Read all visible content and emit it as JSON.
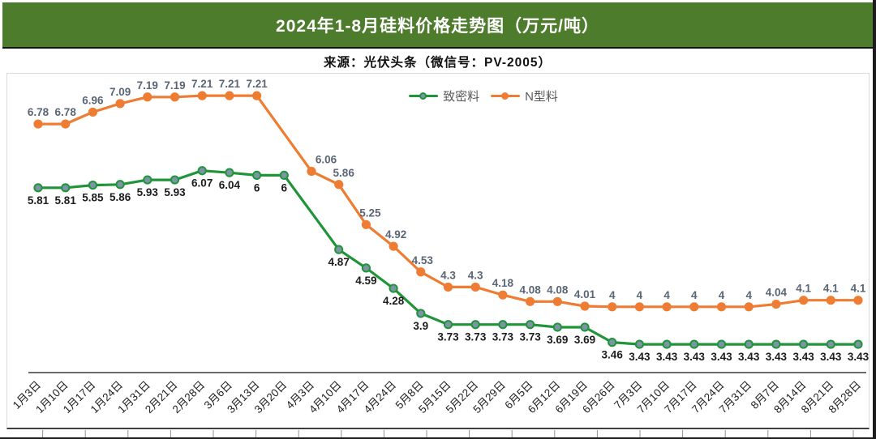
{
  "header": {
    "title": "2024年1-8月硅料价格走势图（万元/吨）",
    "bg_color": "#4d7c2d",
    "text_color": "#ffffff"
  },
  "source": {
    "text": "来源：光伏头条（微信号：PV-2005）"
  },
  "chart_data": {
    "type": "line",
    "title": "2024年1-8月硅料价格走势图（万元/吨）",
    "xlabel": "",
    "ylabel": "万元/吨",
    "ylim": [
      3.0,
      7.56
    ],
    "grid": false,
    "y_axis_visible": false,
    "legend_position": "top-center",
    "categories": [
      "1月3日",
      "1月10日",
      "1月17日",
      "1月24日",
      "1月31日",
      "2月21日",
      "2月28日",
      "3月6日",
      "3月13日",
      "3月20日",
      "4月3日",
      "4月10日",
      "4月17日",
      "4月24日",
      "5月8日",
      "5月15日",
      "5月22日",
      "5月29日",
      "6月5日",
      "6月12日",
      "6月19日",
      "6月26日",
      "7月3日",
      "7月10日",
      "7月17日",
      "7月24日",
      "7月31日",
      "8月7日",
      "8月14日",
      "8月21日",
      "8月28日"
    ],
    "series": [
      {
        "name": "致密料",
        "color": "#1f9438",
        "marker_fill": "#7b95a6",
        "marker_stroke": "#1f9438",
        "label_color": "#1c1c1c",
        "label_position": "below",
        "values": [
          5.81,
          5.81,
          5.85,
          5.86,
          5.93,
          5.93,
          6.07,
          6.04,
          6,
          6,
          null,
          4.87,
          4.59,
          4.28,
          3.9,
          3.73,
          3.73,
          3.73,
          3.73,
          3.69,
          3.69,
          3.46,
          3.43,
          3.43,
          3.43,
          3.43,
          3.43,
          3.43,
          3.43,
          3.43,
          3.43
        ]
      },
      {
        "name": "N型料",
        "color": "#ef7c33",
        "marker_fill": "#ef7c33",
        "marker_stroke": "#ef7c33",
        "label_color": "#5a6576",
        "label_position": "above",
        "values": [
          6.78,
          6.78,
          6.96,
          7.09,
          7.19,
          7.19,
          7.21,
          7.21,
          7.21,
          null,
          6.06,
          5.86,
          5.25,
          4.92,
          4.53,
          4.3,
          4.3,
          4.18,
          4.08,
          4.08,
          4.01,
          4,
          4,
          4,
          4,
          4,
          4,
          4.04,
          4.1,
          4.1,
          4.1
        ]
      }
    ]
  },
  "axis": {
    "line_color": "#3a3a3a",
    "tick_label_color": "#1f1f1f"
  }
}
